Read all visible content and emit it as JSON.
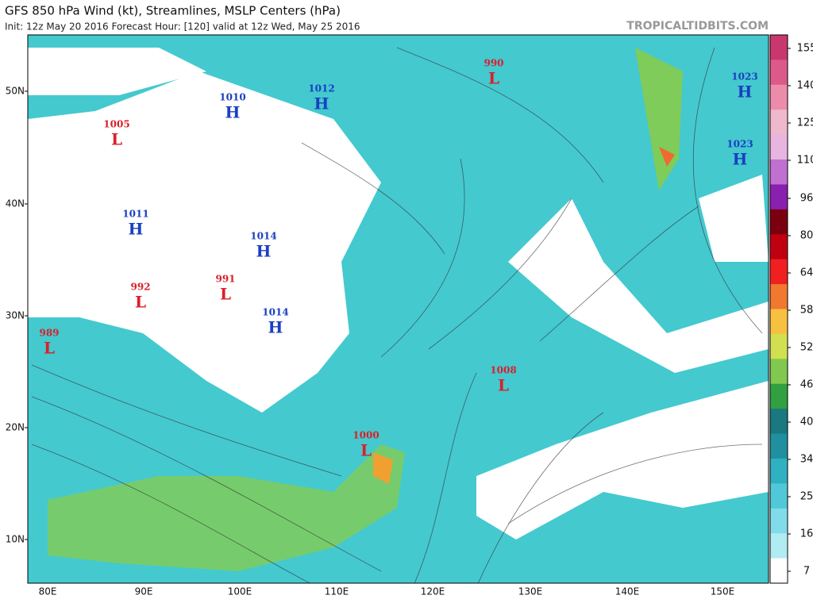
{
  "header": {
    "title": "GFS 850 hPa Wind (kt), Streamlines, MSLP Centers (hPa)",
    "subtitle": "Init: 12z May 20 2016   Forecast Hour: [120]   valid at 12z Wed, May 25 2016",
    "site": "TROPICALTIDBITS.COM"
  },
  "latitude_labels": [
    "50N",
    "40N",
    "30N",
    "20N",
    "10N"
  ],
  "longitude_labels": [
    "80E",
    "90E",
    "100E",
    "110E",
    "120E",
    "130E",
    "140E",
    "150E"
  ],
  "pressure_centers": [
    {
      "symbol": "L",
      "pressure": 990
    },
    {
      "symbol": "H",
      "pressure": 1012
    },
    {
      "symbol": "H",
      "pressure": 1010
    },
    {
      "symbol": "L",
      "pressure": 1005
    },
    {
      "symbol": "H",
      "pressure": 1023
    },
    {
      "symbol": "H",
      "pressure": 1023
    },
    {
      "symbol": "H",
      "pressure": 1011
    },
    {
      "symbol": "H",
      "pressure": 1014
    },
    {
      "symbol": "L",
      "pressure": 992
    },
    {
      "symbol": "L",
      "pressure": 991
    },
    {
      "symbol": "H",
      "pressure": 1014
    },
    {
      "symbol": "L",
      "pressure": 989
    },
    {
      "symbol": "L",
      "pressure": 1008
    },
    {
      "symbol": "L",
      "pressure": 1000
    }
  ],
  "colorbar": {
    "ticks": [
      155,
      140,
      125,
      110,
      96,
      80,
      64,
      58,
      52,
      46,
      40,
      34,
      25,
      16,
      7
    ]
  }
}
